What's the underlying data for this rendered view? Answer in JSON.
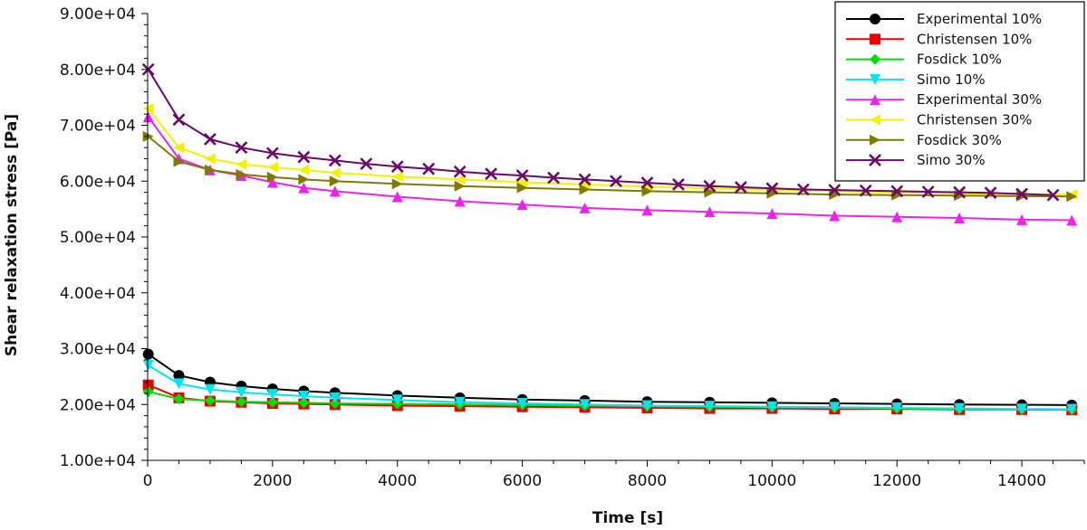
{
  "chart_data": {
    "type": "line",
    "title": "",
    "xlabel": "Time [s]",
    "ylabel": "Shear relaxation stress [Pa]",
    "xlim": [
      0,
      15000
    ],
    "ylim": [
      10000,
      90000
    ],
    "x_ticks": [
      0,
      2000,
      4000,
      6000,
      8000,
      10000,
      12000,
      14000
    ],
    "x_tick_labels": [
      "0",
      "2000",
      "4000",
      "6000",
      "8000",
      "10000",
      "12000",
      "14000"
    ],
    "y_ticks": [
      10000,
      20000,
      30000,
      40000,
      50000,
      60000,
      70000,
      80000,
      90000
    ],
    "y_tick_labels": [
      "1.00e+04",
      "2.00e+04",
      "3.00e+04",
      "4.00e+04",
      "5.00e+04",
      "6.00e+04",
      "7.00e+04",
      "8.00e+04",
      "9.00e+04"
    ],
    "grid": false,
    "legend_position": "top-right",
    "series": [
      {
        "name": "Experimental 10%",
        "color": "#000000",
        "marker": "circle",
        "x": [
          10,
          500,
          1000,
          1500,
          2000,
          2500,
          3000,
          4000,
          5000,
          6000,
          7000,
          8000,
          9000,
          10000,
          11000,
          12000,
          13000,
          14000,
          14800
        ],
        "y": [
          29000,
          25200,
          24000,
          23300,
          22800,
          22400,
          22100,
          21600,
          21200,
          20900,
          20700,
          20500,
          20400,
          20300,
          20200,
          20100,
          20000,
          19950,
          19900
        ]
      },
      {
        "name": "Christensen 10%",
        "color": "#ee0000",
        "marker": "square",
        "x": [
          10,
          500,
          1000,
          1500,
          2000,
          2500,
          3000,
          4000,
          5000,
          6000,
          7000,
          8000,
          9000,
          10000,
          11000,
          12000,
          13000,
          14000,
          14800
        ],
        "y": [
          23500,
          21200,
          20600,
          20400,
          20200,
          20100,
          20000,
          19800,
          19700,
          19600,
          19500,
          19400,
          19300,
          19300,
          19200,
          19200,
          19100,
          19100,
          19050
        ]
      },
      {
        "name": "Fosdick 10%",
        "color": "#00dd00",
        "marker": "diamond",
        "x": [
          10,
          500,
          1000,
          1500,
          2000,
          2500,
          3000,
          4000,
          5000,
          6000,
          7000,
          8000,
          9000,
          10000,
          11000,
          12000,
          13000,
          14000,
          14800
        ],
        "y": [
          22300,
          21000,
          20700,
          20500,
          20400,
          20300,
          20200,
          20100,
          20000,
          19900,
          19800,
          19700,
          19600,
          19500,
          19400,
          19300,
          19200,
          19100,
          19050
        ]
      },
      {
        "name": "Simo 10%",
        "color": "#00e5ee",
        "marker": "triangle-down",
        "x": [
          10,
          500,
          1000,
          1500,
          2000,
          2500,
          3000,
          4000,
          5000,
          6000,
          7000,
          8000,
          9000,
          10000,
          11000,
          12000,
          13000,
          14000,
          14800
        ],
        "y": [
          27000,
          23700,
          22700,
          22200,
          21800,
          21500,
          21200,
          20800,
          20400,
          20200,
          20000,
          19800,
          19700,
          19600,
          19500,
          19400,
          19300,
          19200,
          19150
        ]
      },
      {
        "name": "Experimental 30%",
        "color": "#ee22ee",
        "marker": "triangle-up",
        "x": [
          10,
          500,
          1000,
          1500,
          2000,
          2500,
          3000,
          4000,
          5000,
          6000,
          7000,
          8000,
          9000,
          10000,
          11000,
          12000,
          13000,
          14000,
          14800
        ],
        "y": [
          71500,
          64000,
          62000,
          61000,
          59800,
          58800,
          58200,
          57200,
          56400,
          55800,
          55200,
          54800,
          54500,
          54200,
          53800,
          53600,
          53400,
          53100,
          53000
        ]
      },
      {
        "name": "Christensen 30%",
        "color": "#f2f200",
        "marker": "triangle-left",
        "x": [
          10,
          500,
          1000,
          1500,
          2000,
          2500,
          3000,
          4000,
          5000,
          6000,
          7000,
          8000,
          9000,
          10000,
          11000,
          12000,
          13000,
          14000,
          14800
        ],
        "y": [
          73000,
          66000,
          64000,
          63000,
          62500,
          62000,
          61500,
          60800,
          60300,
          59800,
          59400,
          59000,
          58700,
          58400,
          58200,
          58000,
          57800,
          57700,
          57600
        ]
      },
      {
        "name": "Fosdick 30%",
        "color": "#7f7a00",
        "marker": "triangle-right",
        "x": [
          10,
          500,
          1000,
          1500,
          2000,
          2500,
          3000,
          4000,
          5000,
          6000,
          7000,
          8000,
          9000,
          10000,
          11000,
          12000,
          13000,
          14000,
          14800
        ],
        "y": [
          68000,
          63500,
          62000,
          61200,
          60700,
          60300,
          60000,
          59500,
          59100,
          58800,
          58500,
          58200,
          58000,
          57800,
          57600,
          57500,
          57400,
          57300,
          57250
        ]
      },
      {
        "name": "Simo 30%",
        "color": "#6a0a6a",
        "marker": "x",
        "x": [
          10,
          500,
          1000,
          1500,
          2000,
          2500,
          3000,
          3500,
          4000,
          4500,
          5000,
          5500,
          6000,
          6500,
          7000,
          7500,
          8000,
          8500,
          9000,
          9500,
          10000,
          10500,
          11000,
          11500,
          12000,
          12500,
          13000,
          13500,
          14000,
          14500
        ],
        "y": [
          80000,
          71000,
          67500,
          66000,
          65000,
          64300,
          63700,
          63100,
          62600,
          62200,
          61700,
          61300,
          61000,
          60600,
          60300,
          60000,
          59700,
          59400,
          59100,
          58900,
          58700,
          58500,
          58400,
          58300,
          58200,
          58100,
          58000,
          57900,
          57700,
          57500
        ]
      }
    ]
  }
}
